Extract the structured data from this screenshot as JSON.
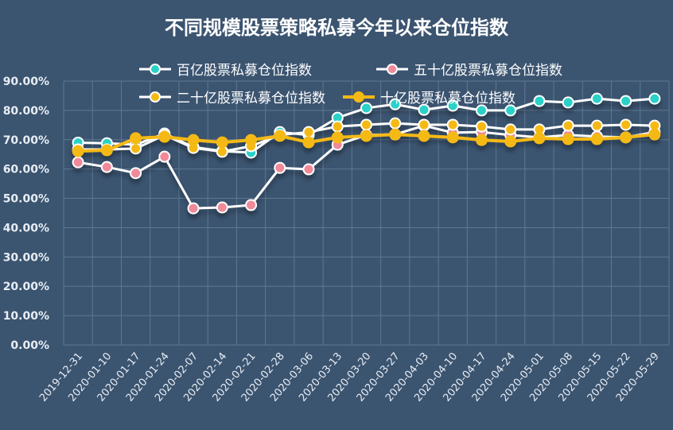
{
  "chart_data": {
    "type": "line",
    "title": "不同规模股票策略私募今年以来仓位指数",
    "xlabel": "",
    "ylabel": "",
    "ylim": [
      0,
      90
    ],
    "yticks": [
      "0.00%",
      "10.00%",
      "20.00%",
      "30.00%",
      "40.00%",
      "50.00%",
      "60.00%",
      "70.00%",
      "80.00%",
      "90.00%"
    ],
    "grid": true,
    "legend_position": "top",
    "categories": [
      "2019-12-31",
      "2020-01-10",
      "2020-01-17",
      "2020-01-24",
      "2020-02-07",
      "2020-02-14",
      "2020-02-21",
      "2020-02-28",
      "2020-03-06",
      "2020-03-13",
      "2020-03-20",
      "2020-03-27",
      "2020-04-03",
      "2020-04-10",
      "2020-04-17",
      "2020-04-24",
      "2020-05-01",
      "2020-05-08",
      "2020-05-15",
      "2020-05-22",
      "2020-05-29"
    ],
    "series": [
      {
        "name": "百亿股票私募仓位指数",
        "line_color": "#ffffff",
        "marker_color": "#2bd1c9",
        "line_width": 3,
        "values": [
          69.0,
          68.8,
          68.3,
          72.1,
          67.5,
          66.1,
          65.6,
          72.6,
          71.6,
          77.5,
          80.8,
          82.1,
          80.2,
          81.6,
          80.0,
          80.0,
          83.2,
          82.7,
          84.0,
          83.2,
          84.0
        ]
      },
      {
        "name": "五十亿股票私募仓位指数",
        "line_color": "#ffffff",
        "marker_color": "#f08a9a",
        "line_width": 3,
        "values": [
          62.3,
          60.7,
          58.6,
          64.2,
          46.6,
          46.9,
          47.7,
          60.4,
          59.9,
          68.3,
          71.6,
          71.8,
          74.8,
          72.4,
          72.6,
          71.6,
          70.8,
          71.6,
          71.1,
          70.8,
          72.6
        ]
      },
      {
        "name": "二十亿股票私募仓位指数",
        "line_color": "#ffffff",
        "marker_color": "#f5b914",
        "line_width": 3,
        "values": [
          66.7,
          66.7,
          67.0,
          71.6,
          67.2,
          65.9,
          67.8,
          71.6,
          72.6,
          74.5,
          75.1,
          75.6,
          75.1,
          75.1,
          74.5,
          73.5,
          73.5,
          74.8,
          74.8,
          75.1,
          74.8
        ]
      },
      {
        "name": "十亿股票私募仓位指数",
        "line_color": "#f5b914",
        "marker_color": "#f5b914",
        "line_width": 4,
        "values": [
          66.1,
          66.4,
          70.5,
          71.0,
          69.9,
          69.1,
          69.9,
          71.3,
          69.1,
          70.8,
          71.3,
          71.8,
          71.3,
          70.8,
          69.9,
          69.4,
          70.5,
          70.2,
          70.2,
          70.8,
          71.8
        ]
      }
    ]
  },
  "colors": {
    "background": "#3b5470",
    "grid": "#5f7891",
    "text": "#ffffff"
  }
}
